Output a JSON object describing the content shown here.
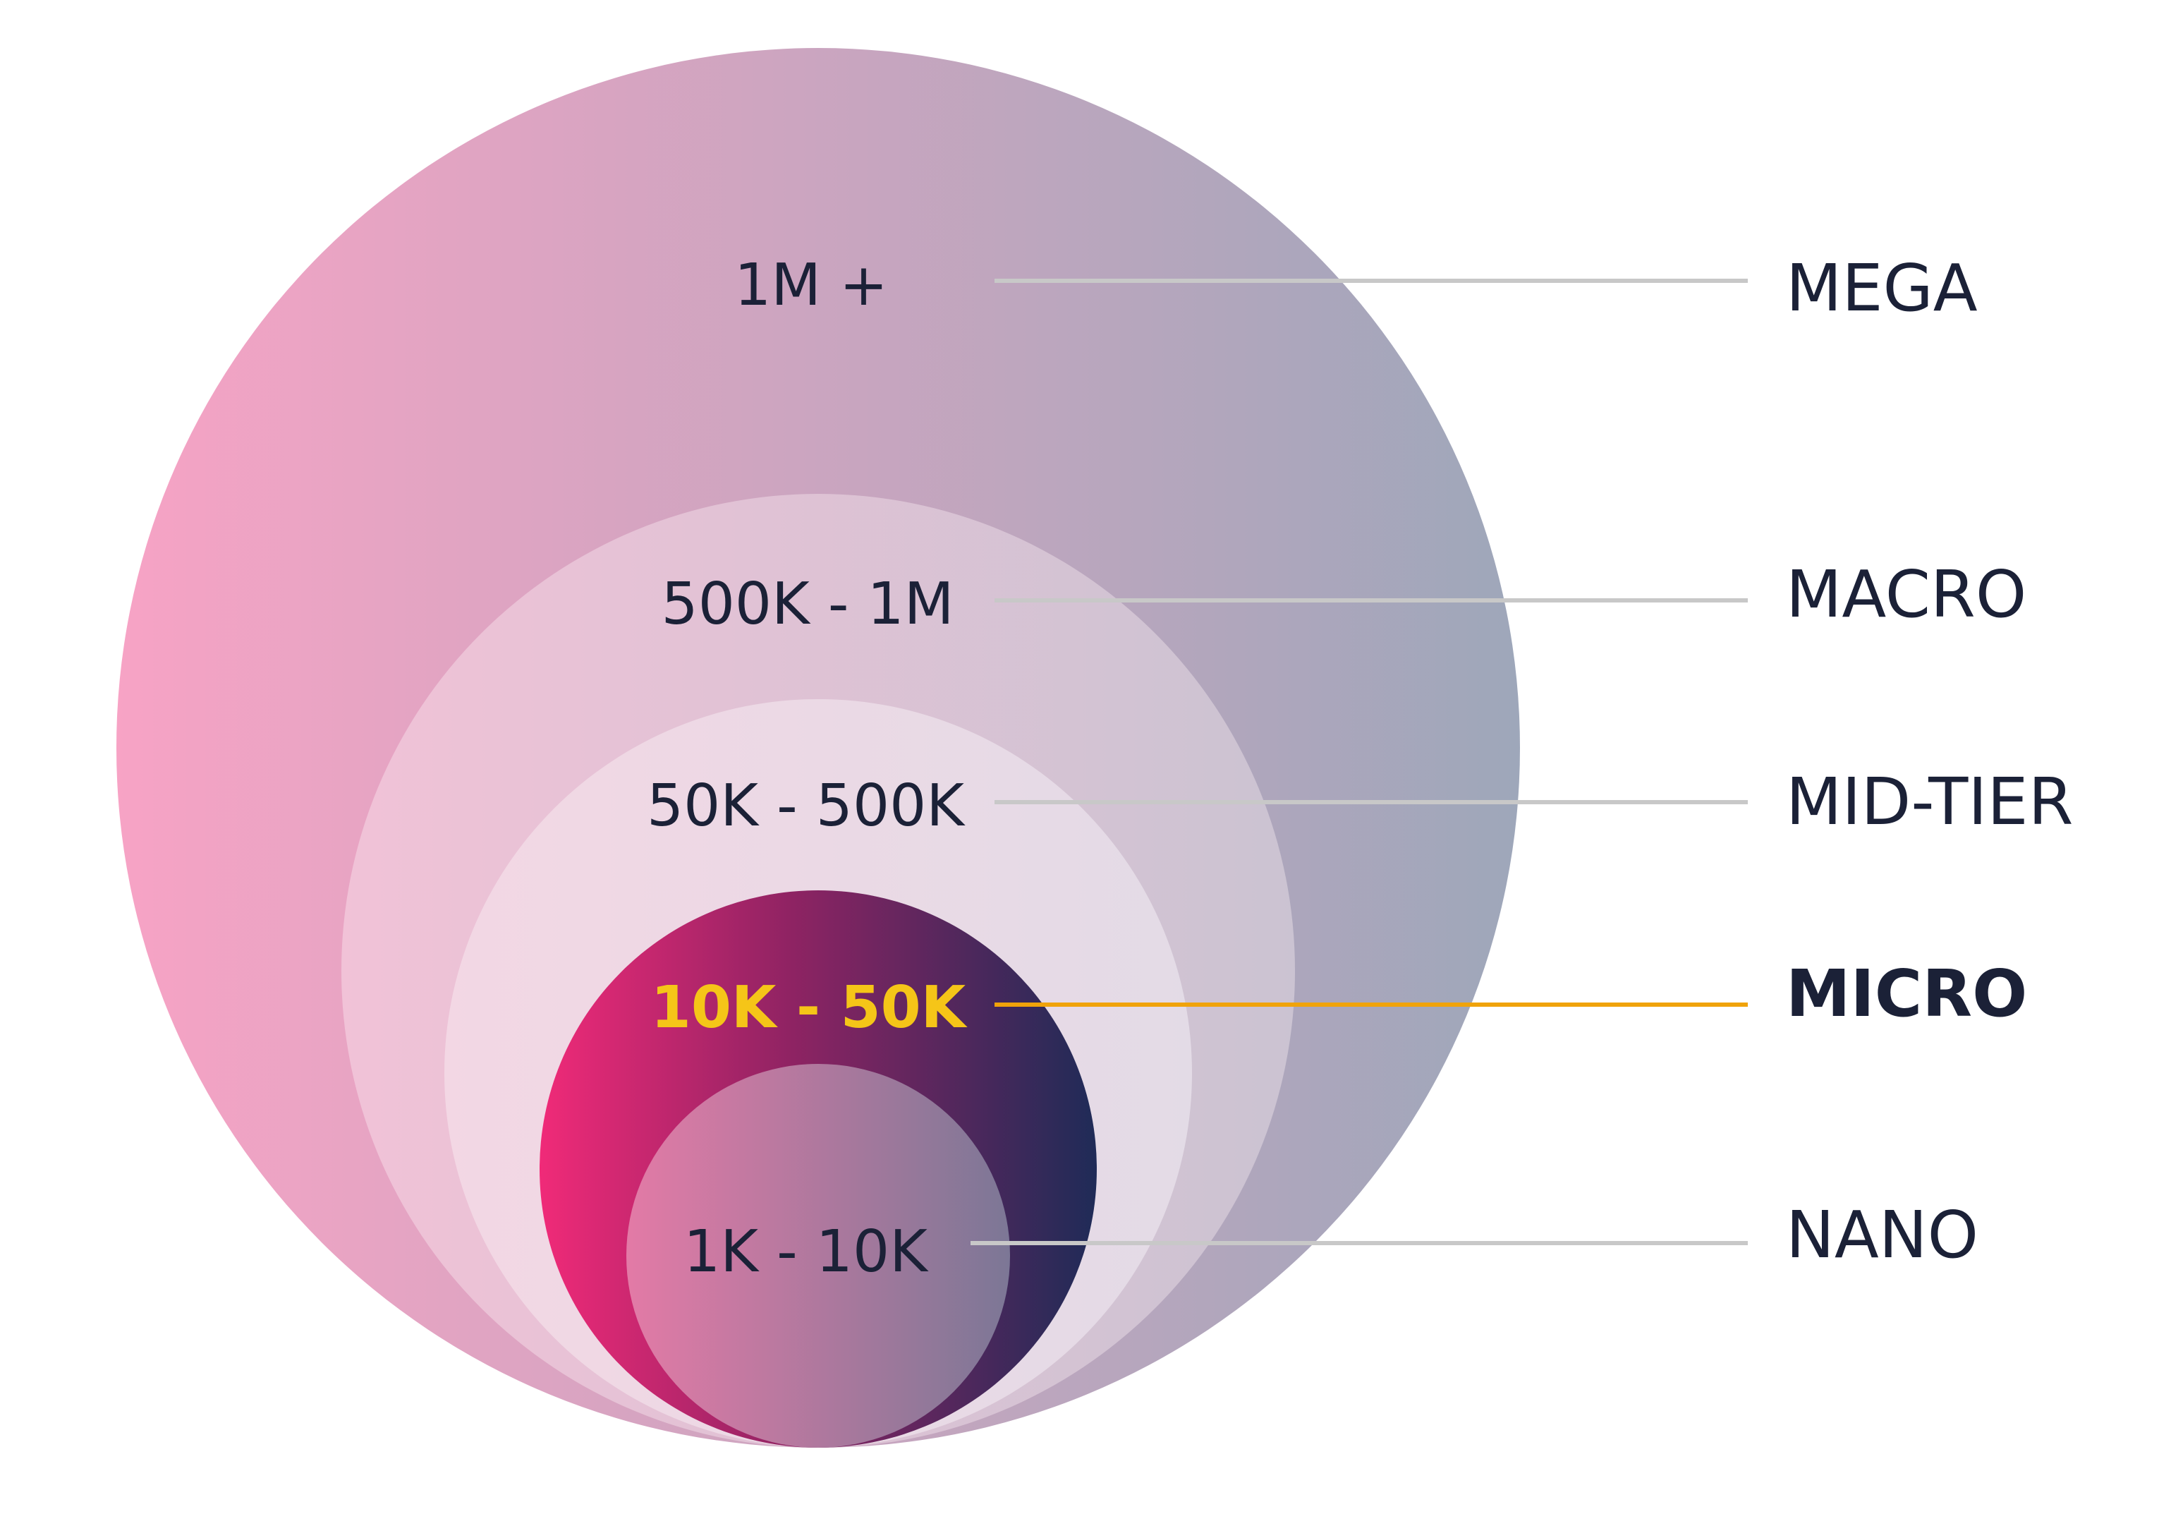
{
  "tiers": [
    {
      "range": "1M +",
      "name": "MEGA",
      "highlight": false
    },
    {
      "range": "500K - 1M",
      "name": "MACRO",
      "highlight": false
    },
    {
      "range": "50K - 500K",
      "name": "MID-TIER",
      "highlight": false
    },
    {
      "range": "10K - 50K",
      "name": "MICRO",
      "highlight": true
    },
    {
      "range": "1K - 10K",
      "name": "NANO",
      "highlight": false
    }
  ],
  "colors": {
    "mega_gradient": [
      "#f7a3c5",
      "#9ea7ba"
    ],
    "micro_gradient": [
      "#f02a78",
      "#1f2b57"
    ],
    "nano_gradient": [
      "#e37aa6",
      "#7c7796"
    ],
    "leader_line": "#c8c8c8",
    "highlight_line": "#f0a30a",
    "highlight_text": "#f5c518",
    "text": "#1b2137"
  }
}
